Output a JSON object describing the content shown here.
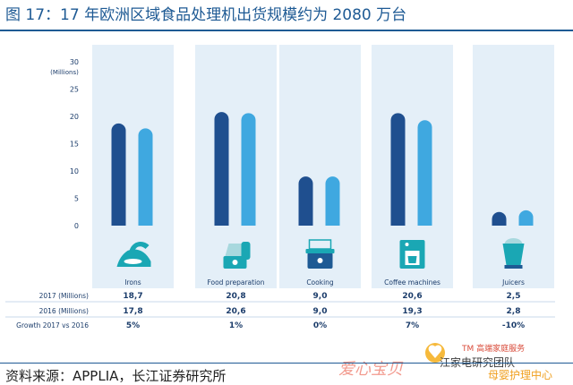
{
  "page": {
    "title": "图 17：17 年欧洲区域食品处理机出货规模约为 2080 万台",
    "source": "资料来源：APPLIA，长江证券研究所"
  },
  "watermark": {
    "text_main": "爱心宝贝",
    "text_tm": "TM 高端家庭服务",
    "text_team": "江家电研究团队",
    "text_sub": "母婴护理中心"
  },
  "colors": {
    "series_2017": "#1f4f8f",
    "series_2016": "#3fa8e0",
    "panel_bg": "#e4eff8",
    "icon_teal": "#1aa7b4"
  },
  "chart_data": {
    "type": "bar",
    "ylabel": "(Millions)",
    "ylim": [
      0,
      30
    ],
    "yticks": [
      0,
      5,
      10,
      15,
      20,
      25,
      30
    ],
    "categories": [
      "Irons",
      "Food preparation",
      "Cooking",
      "Coffee machines",
      "Juicers"
    ],
    "category_icons": [
      "iron-icon",
      "food-processor-icon",
      "cooking-pot-icon",
      "coffee-machine-icon",
      "juicer-icon"
    ],
    "series": [
      {
        "name": "2017 (Millions)",
        "values": [
          18.7,
          20.8,
          9.0,
          20.6,
          2.5
        ],
        "labels": [
          "18,7",
          "20,8",
          "9,0",
          "20,6",
          "2,5"
        ]
      },
      {
        "name": "2016 (Millions)",
        "values": [
          17.8,
          20.6,
          9.0,
          19.3,
          2.8
        ],
        "labels": [
          "17,8",
          "20,6",
          "9,0",
          "19,3",
          "2,8"
        ]
      }
    ],
    "growth": {
      "name": "Growth 2017 vs 2016",
      "values": [
        "5%",
        "1%",
        "0%",
        "7%",
        "-10%"
      ]
    }
  }
}
